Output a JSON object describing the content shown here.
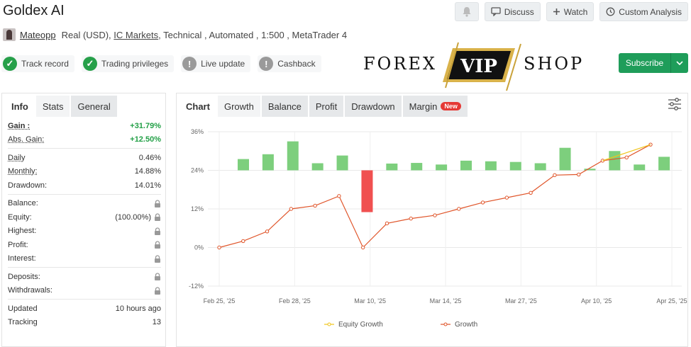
{
  "header": {
    "title": "Goldex AI",
    "buttons": {
      "discuss": "Discuss",
      "watch": "Watch",
      "custom_analysis": "Custom Analysis"
    }
  },
  "subline": {
    "user": "Mateopp",
    "account": "Real (USD),",
    "broker": "IC Markets",
    "rest": ", Technical , Automated , 1:500 , MetaTrader 4"
  },
  "badges": {
    "track_record": "Track record",
    "trading_privileges": "Trading privileges",
    "live_update": "Live update",
    "cashback": "Cashback"
  },
  "logo": {
    "left": "FOREX",
    "center": "VIP",
    "right": "SHOP"
  },
  "subscribe": {
    "label": "Subscribe"
  },
  "left_tabs": {
    "info": "Info",
    "stats": "Stats",
    "general": "General"
  },
  "stats": {
    "gain_label": "Gain :",
    "gain_value": "+31.79%",
    "abs_gain_label": "Abs. Gain:",
    "abs_gain_value": "+12.50%",
    "daily_label": "Daily",
    "daily_value": "0.46%",
    "monthly_label": "Monthly:",
    "monthly_value": "14.88%",
    "drawdown_label": "Drawdown:",
    "drawdown_value": "14.01%",
    "balance_label": "Balance:",
    "equity_label": "Equity:",
    "equity_value": "(100.00%)",
    "highest_label": "Highest:",
    "profit_label": "Profit:",
    "interest_label": "Interest:",
    "deposits_label": "Deposits:",
    "withdrawals_label": "Withdrawals:",
    "updated_label": "Updated",
    "updated_value": "10 hours ago",
    "tracking_label": "Tracking",
    "tracking_value": "13"
  },
  "chart_tabs": {
    "chart": "Chart",
    "growth": "Growth",
    "balance": "Balance",
    "profit": "Profit",
    "drawdown": "Drawdown",
    "margin": "Margin",
    "new_badge": "New"
  },
  "colors": {
    "bar_positive": "#7dcf7d",
    "bar_negative": "#f05050",
    "growth_line": "#e0552a",
    "equity_line": "#f0c419",
    "subscribe": "#1f9d5a"
  },
  "chart_data": {
    "type": "line",
    "y_ticks": [
      "36%",
      "24%",
      "12%",
      "0%",
      "-12%"
    ],
    "ylim": [
      -12,
      36
    ],
    "x_ticks": [
      "Feb 25, '25",
      "Feb 28, '25",
      "Mar 10, '25",
      "Mar 14, '25",
      "Mar 27, '25",
      "Apr 10, '25",
      "Apr 25, '25"
    ],
    "grid": true,
    "legend_position": "bottom",
    "series": [
      {
        "name": "Growth",
        "values": [
          0,
          2,
          5,
          12,
          13,
          16,
          0,
          7.5,
          9,
          10,
          12,
          14,
          15.5,
          17,
          22.5,
          22.7,
          27,
          28,
          32
        ]
      },
      {
        "name": "Equity Growth",
        "values": [
          null,
          null,
          null,
          null,
          null,
          null,
          null,
          null,
          null,
          null,
          null,
          null,
          null,
          null,
          null,
          null,
          27,
          29.5,
          32
        ]
      }
    ],
    "bars": [
      3.5,
      5,
      9,
      2.2,
      4.6,
      -13,
      2.1,
      2.3,
      1.8,
      3,
      2.8,
      2.6,
      2.2,
      7,
      0.5,
      6,
      1.8,
      4.2
    ]
  }
}
